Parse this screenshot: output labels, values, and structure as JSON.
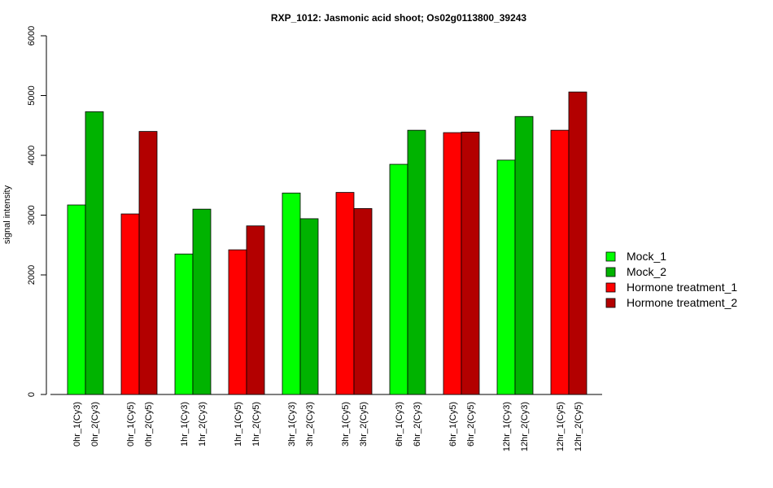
{
  "chart_data": {
    "type": "bar",
    "title": "RXP_1012: Jasmonic acid shoot; Os02g0113800_39243",
    "ylabel": "signal intensity",
    "xlabel": "",
    "ylim": [
      0,
      6000
    ],
    "y_ticks": [
      "0",
      "2000",
      "3000",
      "4000",
      "5000",
      "6000"
    ],
    "grid": false,
    "legend_position": "right",
    "bars": [
      {
        "label": "0hr_1(Cy3)",
        "value": 3170,
        "series": "Mock_1"
      },
      {
        "label": "0hr_2(Cy3)",
        "value": 4730,
        "series": "Mock_2"
      },
      {
        "label": "0hr_1(Cy5)",
        "value": 3020,
        "series": "Hormone treatment_1"
      },
      {
        "label": "0hr_2(Cy5)",
        "value": 4400,
        "series": "Hormone treatment_2"
      },
      {
        "label": "1hr_1(Cy3)",
        "value": 2350,
        "series": "Mock_1"
      },
      {
        "label": "1hr_2(Cy3)",
        "value": 3100,
        "series": "Mock_2"
      },
      {
        "label": "1hr_1(Cy5)",
        "value": 2420,
        "series": "Hormone treatment_1"
      },
      {
        "label": "1hr_2(Cy5)",
        "value": 2820,
        "series": "Hormone treatment_2"
      },
      {
        "label": "3hr_1(Cy3)",
        "value": 3370,
        "series": "Mock_1"
      },
      {
        "label": "3hr_2(Cy3)",
        "value": 2940,
        "series": "Mock_2"
      },
      {
        "label": "3hr_1(Cy5)",
        "value": 3380,
        "series": "Hormone treatment_1"
      },
      {
        "label": "3hr_2(Cy5)",
        "value": 3110,
        "series": "Hormone treatment_2"
      },
      {
        "label": "6hr_1(Cy3)",
        "value": 3850,
        "series": "Mock_1"
      },
      {
        "label": "6hr_2(Cy3)",
        "value": 4420,
        "series": "Mock_2"
      },
      {
        "label": "6hr_1(Cy5)",
        "value": 4380,
        "series": "Hormone treatment_1"
      },
      {
        "label": "6hr_2(Cy5)",
        "value": 4390,
        "series": "Hormone treatment_2"
      },
      {
        "label": "12hr_1(Cy3)",
        "value": 3920,
        "series": "Mock_1"
      },
      {
        "label": "12hr_2(Cy3)",
        "value": 4650,
        "series": "Mock_2"
      },
      {
        "label": "12hr_1(Cy5)",
        "value": 4420,
        "series": "Hormone treatment_1"
      },
      {
        "label": "12hr_2(Cy5)",
        "value": 5060,
        "series": "Hormone treatment_2"
      }
    ],
    "legend": [
      {
        "name": "Mock_1",
        "color": "#00ff00"
      },
      {
        "name": "Mock_2",
        "color": "#00b300"
      },
      {
        "name": "Hormone treatment_1",
        "color": "#ff0000"
      },
      {
        "name": "Hormone treatment_2",
        "color": "#b30000"
      }
    ]
  }
}
